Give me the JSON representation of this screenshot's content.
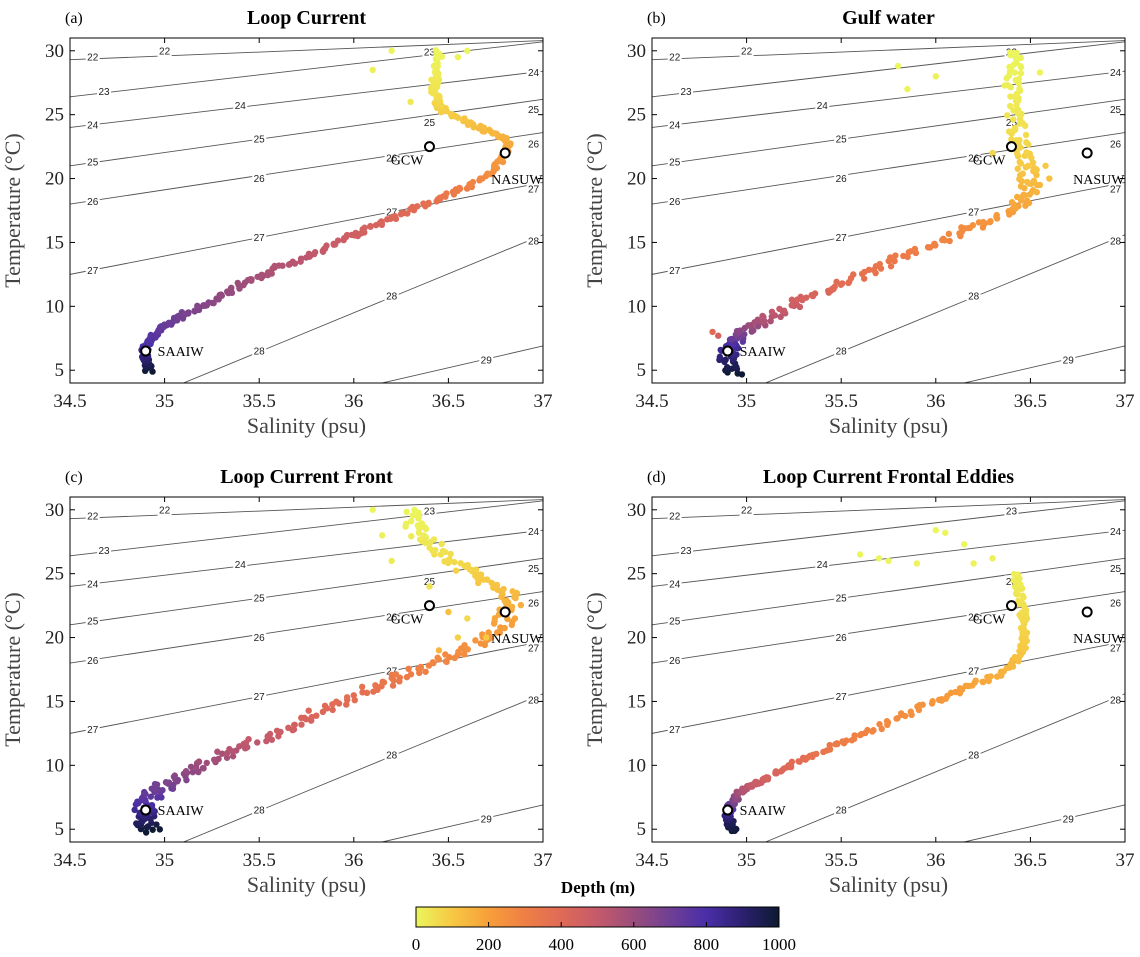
{
  "colors": {
    "colormap": [
      "#ebf55c",
      "#f7c843",
      "#f79f3a",
      "#ef7f45",
      "#e06a56",
      "#c55a6b",
      "#9a4d7c",
      "#6f3f94",
      "#4a2ea8",
      "#2c2070",
      "#0c1a30"
    ],
    "isopycnal": "#555555",
    "marker_edge": "#000000"
  },
  "colorbar": {
    "title": "Depth (m)",
    "min": 0,
    "max": 1000,
    "ticks": [
      "0",
      "200",
      "400",
      "600",
      "800",
      "1000"
    ]
  },
  "chart_data": [
    {
      "panel": "(a)",
      "title": "Loop Current",
      "type": "scatter",
      "xlabel": "Salinity (psu)",
      "ylabel": "Temperature (°C)",
      "xlim": [
        34.5,
        37
      ],
      "ylim": [
        4,
        31
      ],
      "xticks": [
        "34.5",
        "35",
        "35.5",
        "36",
        "36.5",
        "37"
      ],
      "yticks": [
        "5",
        "10",
        "15",
        "20",
        "25",
        "30"
      ],
      "profile": [
        {
          "s": 34.92,
          "t": 5.0,
          "d": 1000
        },
        {
          "s": 34.89,
          "t": 6.0,
          "d": 900
        },
        {
          "s": 34.9,
          "t": 7.0,
          "d": 800
        },
        {
          "s": 34.96,
          "t": 8.0,
          "d": 750
        },
        {
          "s": 35.05,
          "t": 9.0,
          "d": 700
        },
        {
          "s": 35.2,
          "t": 10.0,
          "d": 650
        },
        {
          "s": 35.38,
          "t": 11.5,
          "d": 600
        },
        {
          "s": 35.6,
          "t": 13.0,
          "d": 550
        },
        {
          "s": 35.85,
          "t": 14.5,
          "d": 500
        },
        {
          "s": 36.05,
          "t": 16.0,
          "d": 450
        },
        {
          "s": 36.3,
          "t": 17.5,
          "d": 400
        },
        {
          "s": 36.55,
          "t": 19.0,
          "d": 320
        },
        {
          "s": 36.72,
          "t": 20.5,
          "d": 250
        },
        {
          "s": 36.82,
          "t": 22.0,
          "d": 200
        },
        {
          "s": 36.8,
          "t": 23.2,
          "d": 160
        },
        {
          "s": 36.62,
          "t": 24.2,
          "d": 120
        },
        {
          "s": 36.45,
          "t": 25.5,
          "d": 80
        },
        {
          "s": 36.42,
          "t": 27.0,
          "d": 40
        },
        {
          "s": 36.44,
          "t": 28.5,
          "d": 20
        },
        {
          "s": 36.45,
          "t": 30.0,
          "d": 0
        }
      ],
      "scatter_extra": [
        {
          "s": 36.1,
          "t": 28.5,
          "d": 10
        },
        {
          "s": 36.3,
          "t": 26.0,
          "d": 30
        },
        {
          "s": 36.6,
          "t": 30.0,
          "d": 0
        },
        {
          "s": 36.2,
          "t": 30.0,
          "d": 0
        },
        {
          "s": 36.55,
          "t": 29.5,
          "d": 5
        }
      ],
      "spread": 0.02,
      "markers": [
        {
          "name": "GCW",
          "s": 36.4,
          "t": 22.5,
          "label_pos": "below-left"
        },
        {
          "name": "NASUW",
          "s": 36.8,
          "t": 22.0,
          "label_pos": "below-right"
        },
        {
          "name": "SAAIW",
          "s": 34.9,
          "t": 6.5,
          "label_pos": "right"
        }
      ]
    },
    {
      "panel": "(b)",
      "title": "Gulf water",
      "type": "scatter",
      "xlabel": "Salinity (psu)",
      "ylabel": "Temperature (°C)",
      "xlim": [
        34.5,
        37
      ],
      "ylim": [
        4,
        31
      ],
      "xticks": [
        "34.5",
        "35",
        "35.5",
        "36",
        "36.5",
        "37"
      ],
      "yticks": [
        "5",
        "10",
        "15",
        "20",
        "25",
        "30"
      ],
      "profile": [
        {
          "s": 34.93,
          "t": 4.7,
          "d": 1000
        },
        {
          "s": 34.9,
          "t": 6.0,
          "d": 900
        },
        {
          "s": 34.92,
          "t": 7.0,
          "d": 800
        },
        {
          "s": 34.98,
          "t": 8.0,
          "d": 650
        },
        {
          "s": 35.1,
          "t": 9.0,
          "d": 550
        },
        {
          "s": 35.3,
          "t": 10.5,
          "d": 450
        },
        {
          "s": 35.55,
          "t": 12.0,
          "d": 380
        },
        {
          "s": 35.85,
          "t": 14.0,
          "d": 320
        },
        {
          "s": 36.15,
          "t": 16.0,
          "d": 260
        },
        {
          "s": 36.4,
          "t": 17.5,
          "d": 200
        },
        {
          "s": 36.5,
          "t": 19.0,
          "d": 150
        },
        {
          "s": 36.48,
          "t": 21.0,
          "d": 100
        },
        {
          "s": 36.44,
          "t": 23.0,
          "d": 60
        },
        {
          "s": 36.42,
          "t": 25.5,
          "d": 30
        },
        {
          "s": 36.4,
          "t": 28.0,
          "d": 10
        },
        {
          "s": 36.42,
          "t": 30.0,
          "d": 0
        }
      ],
      "scatter_extra": [
        {
          "s": 35.8,
          "t": 28.8,
          "d": 0
        },
        {
          "s": 35.85,
          "t": 27.0,
          "d": 5
        },
        {
          "s": 36.0,
          "t": 28.0,
          "d": 10
        },
        {
          "s": 36.55,
          "t": 28.3,
          "d": 5
        },
        {
          "s": 36.58,
          "t": 21.0,
          "d": 100
        },
        {
          "s": 36.55,
          "t": 19.5,
          "d": 140
        },
        {
          "s": 34.82,
          "t": 8.0,
          "d": 400
        },
        {
          "s": 34.85,
          "t": 7.7,
          "d": 450
        },
        {
          "s": 36.3,
          "t": 22.0,
          "d": 70
        },
        {
          "s": 36.6,
          "t": 20.0,
          "d": 120
        }
      ],
      "spread": 0.05,
      "markers": [
        {
          "name": "GCW",
          "s": 36.4,
          "t": 22.5,
          "label_pos": "below-left"
        },
        {
          "name": "NASUW",
          "s": 36.8,
          "t": 22.0,
          "label_pos": "below-right"
        },
        {
          "name": "SAAIW",
          "s": 34.9,
          "t": 6.5,
          "label_pos": "right"
        }
      ]
    },
    {
      "panel": "(c)",
      "title": "Loop Current Front",
      "type": "scatter",
      "xlabel": "Salinity (psu)",
      "ylabel": "Temperature (°C)",
      "xlim": [
        34.5,
        37
      ],
      "ylim": [
        4,
        31
      ],
      "xticks": [
        "34.5",
        "35",
        "35.5",
        "36",
        "36.5",
        "37"
      ],
      "yticks": [
        "5",
        "10",
        "15",
        "20",
        "25",
        "30"
      ],
      "profile": [
        {
          "s": 34.93,
          "t": 4.8,
          "d": 1000
        },
        {
          "s": 34.89,
          "t": 6.0,
          "d": 900
        },
        {
          "s": 34.9,
          "t": 7.0,
          "d": 800
        },
        {
          "s": 34.96,
          "t": 8.0,
          "d": 720
        },
        {
          "s": 35.08,
          "t": 9.0,
          "d": 650
        },
        {
          "s": 35.25,
          "t": 10.5,
          "d": 580
        },
        {
          "s": 35.5,
          "t": 12.0,
          "d": 500
        },
        {
          "s": 35.8,
          "t": 14.0,
          "d": 420
        },
        {
          "s": 36.1,
          "t": 16.0,
          "d": 360
        },
        {
          "s": 36.35,
          "t": 17.5,
          "d": 300
        },
        {
          "s": 36.6,
          "t": 19.0,
          "d": 250
        },
        {
          "s": 36.78,
          "t": 21.0,
          "d": 200
        },
        {
          "s": 36.85,
          "t": 23.0,
          "d": 150
        },
        {
          "s": 36.7,
          "t": 24.5,
          "d": 100
        },
        {
          "s": 36.5,
          "t": 26.0,
          "d": 60
        },
        {
          "s": 36.35,
          "t": 28.0,
          "d": 20
        },
        {
          "s": 36.3,
          "t": 30.0,
          "d": 0
        }
      ],
      "scatter_extra": [
        {
          "s": 36.1,
          "t": 30.0,
          "d": 0
        },
        {
          "s": 36.15,
          "t": 28.0,
          "d": 10
        },
        {
          "s": 36.2,
          "t": 26.0,
          "d": 20
        },
        {
          "s": 36.4,
          "t": 24.0,
          "d": 40
        },
        {
          "s": 36.5,
          "t": 22.0,
          "d": 120
        },
        {
          "s": 36.55,
          "t": 20.0,
          "d": 80
        },
        {
          "s": 36.45,
          "t": 19.0,
          "d": 150
        },
        {
          "s": 36.6,
          "t": 21.5,
          "d": 60
        },
        {
          "s": 36.7,
          "t": 20.0,
          "d": 100
        }
      ],
      "spread": 0.06,
      "markers": [
        {
          "name": "GCW",
          "s": 36.4,
          "t": 22.5,
          "label_pos": "below-left"
        },
        {
          "name": "NASUW",
          "s": 36.8,
          "t": 22.0,
          "label_pos": "below-right"
        },
        {
          "name": "SAAIW",
          "s": 34.9,
          "t": 6.5,
          "label_pos": "right"
        }
      ]
    },
    {
      "panel": "(d)",
      "title": "Loop Current Frontal Eddies",
      "type": "scatter",
      "xlabel": "Salinity (psu)",
      "ylabel": "Temperature (°C)",
      "xlim": [
        34.5,
        37
      ],
      "ylim": [
        4,
        31
      ],
      "xticks": [
        "34.5",
        "35",
        "35.5",
        "36",
        "36.5",
        "37"
      ],
      "yticks": [
        "5",
        "10",
        "15",
        "20",
        "25",
        "30"
      ],
      "profile": [
        {
          "s": 34.93,
          "t": 4.7,
          "d": 1000
        },
        {
          "s": 34.9,
          "t": 6.0,
          "d": 900
        },
        {
          "s": 34.92,
          "t": 7.0,
          "d": 700
        },
        {
          "s": 34.98,
          "t": 8.0,
          "d": 550
        },
        {
          "s": 35.1,
          "t": 9.0,
          "d": 450
        },
        {
          "s": 35.3,
          "t": 10.5,
          "d": 380
        },
        {
          "s": 35.55,
          "t": 12.0,
          "d": 300
        },
        {
          "s": 35.85,
          "t": 14.0,
          "d": 250
        },
        {
          "s": 36.15,
          "t": 16.0,
          "d": 200
        },
        {
          "s": 36.38,
          "t": 17.5,
          "d": 150
        },
        {
          "s": 36.46,
          "t": 19.0,
          "d": 100
        },
        {
          "s": 36.47,
          "t": 21.0,
          "d": 70
        },
        {
          "s": 36.45,
          "t": 23.0,
          "d": 40
        },
        {
          "s": 36.42,
          "t": 25.0,
          "d": 15
        }
      ],
      "scatter_extra": [
        {
          "s": 35.6,
          "t": 26.5,
          "d": 0
        },
        {
          "s": 35.7,
          "t": 26.2,
          "d": 0
        },
        {
          "s": 35.9,
          "t": 25.8,
          "d": 5
        },
        {
          "s": 36.05,
          "t": 28.2,
          "d": 0
        },
        {
          "s": 36.15,
          "t": 27.3,
          "d": 0
        },
        {
          "s": 36.2,
          "t": 25.8,
          "d": 5
        },
        {
          "s": 36.3,
          "t": 26.2,
          "d": 10
        },
        {
          "s": 35.75,
          "t": 26.0,
          "d": 0
        },
        {
          "s": 36.0,
          "t": 28.4,
          "d": 0
        }
      ],
      "spread": 0.02,
      "markers": [
        {
          "name": "GCW",
          "s": 36.4,
          "t": 22.5,
          "label_pos": "below-left"
        },
        {
          "name": "NASUW",
          "s": 36.8,
          "t": 22.0,
          "label_pos": "below-right"
        },
        {
          "name": "SAAIW",
          "s": 34.9,
          "t": 6.5,
          "label_pos": "right"
        }
      ]
    }
  ],
  "isopycnals": [
    {
      "label": "22",
      "pts": [
        [
          34.5,
          29.3
        ],
        [
          37.0,
          30.8
        ]
      ],
      "label_at": [
        [
          34.62,
          29.5
        ],
        [
          35.0,
          30.0
        ]
      ]
    },
    {
      "label": "23",
      "pts": [
        [
          34.5,
          26.4
        ],
        [
          37.0,
          30.7
        ]
      ],
      "label_at": [
        [
          34.68,
          26.8
        ],
        [
          36.4,
          29.9
        ]
      ]
    },
    {
      "label": "24",
      "pts": [
        [
          34.5,
          24.0
        ],
        [
          37.0,
          28.4
        ]
      ],
      "label_at": [
        [
          34.62,
          24.2
        ],
        [
          35.4,
          25.7
        ],
        [
          36.95,
          28.3
        ]
      ]
    },
    {
      "label": "25",
      "pts": [
        [
          34.5,
          21.0
        ],
        [
          37.0,
          26.2
        ]
      ],
      "label_at": [
        [
          34.62,
          21.3
        ],
        [
          35.5,
          23.1
        ],
        [
          36.4,
          24.4
        ],
        [
          36.95,
          25.4
        ]
      ]
    },
    {
      "label": "26",
      "pts": [
        [
          34.5,
          18.0
        ],
        [
          37.0,
          23.6
        ]
      ],
      "label_at": [
        [
          34.62,
          18.2
        ],
        [
          35.5,
          20.0
        ],
        [
          36.2,
          21.6
        ],
        [
          36.95,
          22.7
        ]
      ]
    },
    {
      "label": "27",
      "pts": [
        [
          34.5,
          12.5
        ],
        [
          37.0,
          19.7
        ]
      ],
      "label_at": [
        [
          34.62,
          12.8
        ],
        [
          35.5,
          15.4
        ],
        [
          36.2,
          17.4
        ],
        [
          36.95,
          19.2
        ]
      ]
    },
    {
      "label": "28",
      "pts": [
        [
          35.1,
          4.0
        ],
        [
          37.0,
          15.6
        ]
      ],
      "label_at": [
        [
          35.5,
          6.5
        ],
        [
          36.2,
          10.8
        ],
        [
          36.95,
          15.1
        ]
      ]
    },
    {
      "label": "29",
      "pts": [
        [
          36.15,
          4.0
        ],
        [
          37.0,
          6.9
        ]
      ],
      "label_at": [
        [
          36.7,
          5.8
        ]
      ]
    }
  ]
}
